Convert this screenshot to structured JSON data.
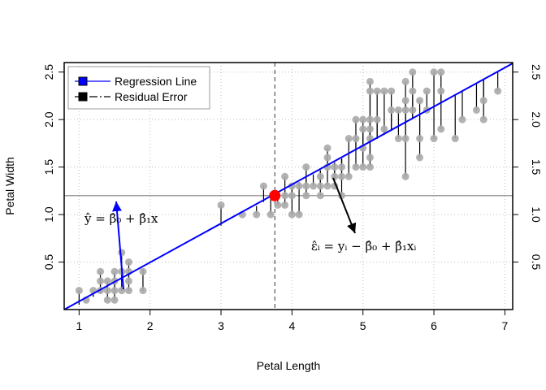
{
  "chart_data": {
    "type": "scatter",
    "xlabel": "Petal Length",
    "ylabel": "Petal Width",
    "xlim": [
      0.79,
      7.11
    ],
    "ylim": [
      0.0,
      2.6
    ],
    "x_ticks": [
      1,
      2,
      3,
      4,
      5,
      6,
      7
    ],
    "y_ticks": [
      0.5,
      1.0,
      1.5,
      2.0,
      2.5
    ],
    "x_tick_labels": [
      "1",
      "2",
      "3",
      "4",
      "5",
      "6",
      "7"
    ],
    "y_tick_labels": [
      "0.5",
      "1.0",
      "1.5",
      "2.0",
      "2.5"
    ],
    "grid": true,
    "regression": {
      "intercept": -0.366,
      "slope": 0.416
    },
    "mean_point": {
      "x": 3.758,
      "y": 1.199
    },
    "legend": {
      "placement": "top-left",
      "entries": [
        {
          "label": "Regression Line",
          "color": "#0000ff"
        },
        {
          "label": "Residual Error",
          "color": "#000000"
        }
      ]
    },
    "annotations": {
      "fitted": "ŷ = β̂₀ + β̂₁x",
      "residual": "ε̂ᵢ = yᵢ − β̂₀ + β̂₁xᵢ"
    },
    "colors": {
      "points": "#aaaaaa",
      "line": "#0000ff",
      "mean": "#ff0000",
      "residual": "#000000",
      "hline": "#7f7f7f",
      "grid": "#bdbdbd"
    },
    "points": [
      [
        1.0,
        0.2
      ],
      [
        1.1,
        0.1
      ],
      [
        1.2,
        0.2
      ],
      [
        1.3,
        0.2
      ],
      [
        1.3,
        0.3
      ],
      [
        1.3,
        0.4
      ],
      [
        1.4,
        0.1
      ],
      [
        1.4,
        0.2
      ],
      [
        1.4,
        0.3
      ],
      [
        1.5,
        0.1
      ],
      [
        1.5,
        0.2
      ],
      [
        1.5,
        0.3
      ],
      [
        1.5,
        0.4
      ],
      [
        1.6,
        0.2
      ],
      [
        1.6,
        0.4
      ],
      [
        1.6,
        0.6
      ],
      [
        1.7,
        0.2
      ],
      [
        1.7,
        0.3
      ],
      [
        1.7,
        0.4
      ],
      [
        1.7,
        0.5
      ],
      [
        1.9,
        0.2
      ],
      [
        1.9,
        0.4
      ],
      [
        3.0,
        1.1
      ],
      [
        3.3,
        1.0
      ],
      [
        3.5,
        1.0
      ],
      [
        3.6,
        1.3
      ],
      [
        3.7,
        1.0
      ],
      [
        3.8,
        1.1
      ],
      [
        3.9,
        1.1
      ],
      [
        3.9,
        1.2
      ],
      [
        3.9,
        1.4
      ],
      [
        4.0,
        1.0
      ],
      [
        4.0,
        1.2
      ],
      [
        4.0,
        1.3
      ],
      [
        4.1,
        1.0
      ],
      [
        4.1,
        1.3
      ],
      [
        4.2,
        1.2
      ],
      [
        4.2,
        1.3
      ],
      [
        4.2,
        1.5
      ],
      [
        4.3,
        1.3
      ],
      [
        4.4,
        1.2
      ],
      [
        4.4,
        1.3
      ],
      [
        4.4,
        1.4
      ],
      [
        4.5,
        1.3
      ],
      [
        4.5,
        1.5
      ],
      [
        4.5,
        1.6
      ],
      [
        4.5,
        1.7
      ],
      [
        4.6,
        1.3
      ],
      [
        4.6,
        1.4
      ],
      [
        4.6,
        1.5
      ],
      [
        4.7,
        1.2
      ],
      [
        4.7,
        1.4
      ],
      [
        4.7,
        1.5
      ],
      [
        4.8,
        1.4
      ],
      [
        4.8,
        1.8
      ],
      [
        4.9,
        1.5
      ],
      [
        4.9,
        1.8
      ],
      [
        4.9,
        2.0
      ],
      [
        5.0,
        1.5
      ],
      [
        5.0,
        1.7
      ],
      [
        5.0,
        1.9
      ],
      [
        5.0,
        2.0
      ],
      [
        5.1,
        1.5
      ],
      [
        5.1,
        1.6
      ],
      [
        5.1,
        1.8
      ],
      [
        5.1,
        1.9
      ],
      [
        5.1,
        2.0
      ],
      [
        5.1,
        2.3
      ],
      [
        5.1,
        2.4
      ],
      [
        5.2,
        2.0
      ],
      [
        5.2,
        2.3
      ],
      [
        5.3,
        1.9
      ],
      [
        5.3,
        2.3
      ],
      [
        5.4,
        2.1
      ],
      [
        5.4,
        2.3
      ],
      [
        5.5,
        1.8
      ],
      [
        5.5,
        2.1
      ],
      [
        5.6,
        1.4
      ],
      [
        5.6,
        1.8
      ],
      [
        5.6,
        2.1
      ],
      [
        5.6,
        2.2
      ],
      [
        5.6,
        2.4
      ],
      [
        5.7,
        2.1
      ],
      [
        5.7,
        2.3
      ],
      [
        5.7,
        2.5
      ],
      [
        5.8,
        1.6
      ],
      [
        5.8,
        1.8
      ],
      [
        5.8,
        2.2
      ],
      [
        5.9,
        2.1
      ],
      [
        5.9,
        2.3
      ],
      [
        6.0,
        1.8
      ],
      [
        6.0,
        2.5
      ],
      [
        6.1,
        1.9
      ],
      [
        6.1,
        2.3
      ],
      [
        6.1,
        2.5
      ],
      [
        6.3,
        1.8
      ],
      [
        6.4,
        2.0
      ],
      [
        6.6,
        2.1
      ],
      [
        6.7,
        2.0
      ],
      [
        6.7,
        2.2
      ],
      [
        6.9,
        2.3
      ]
    ]
  }
}
